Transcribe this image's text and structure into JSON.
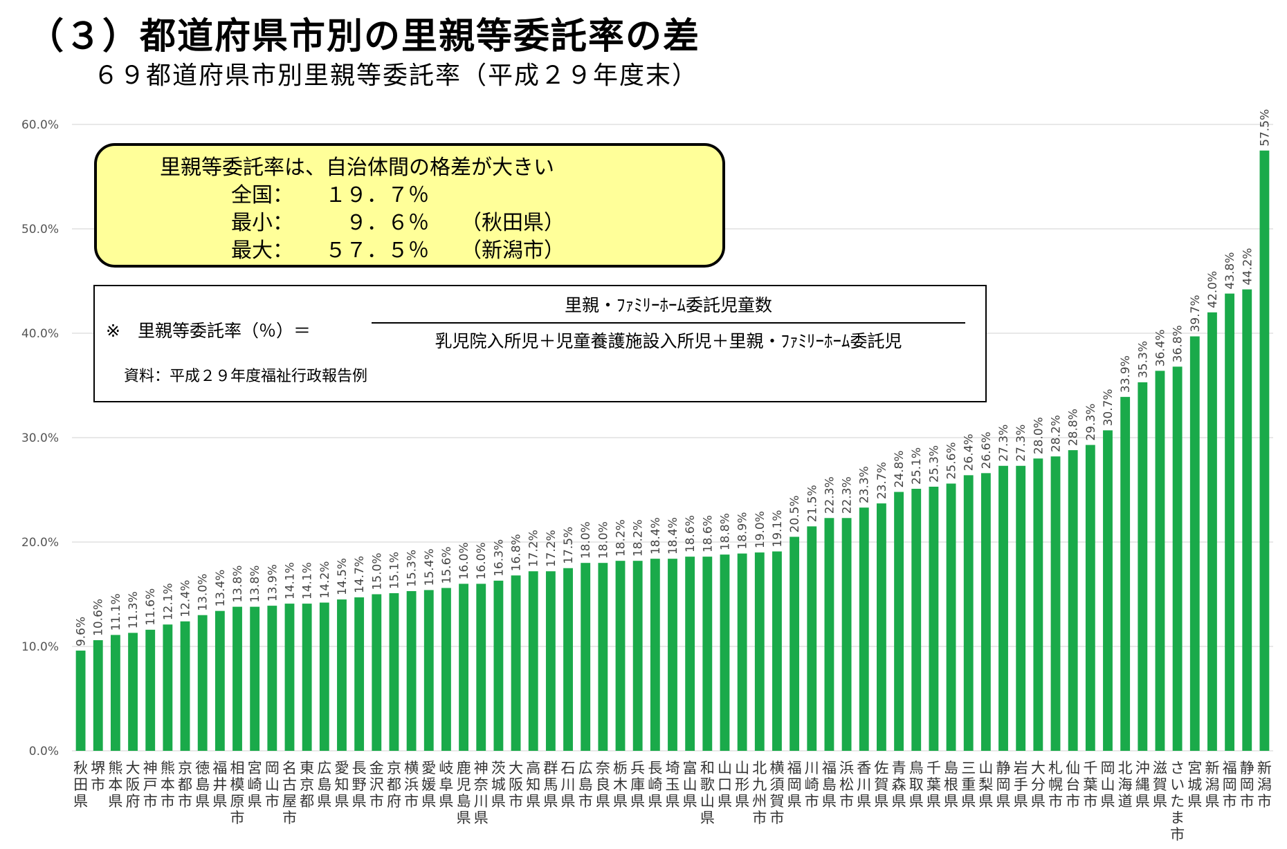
{
  "title": "（３）都道府県市別の里親等委託率の差",
  "subtitle": "６９都道府県市別里親等委託率（平成２９年度末）",
  "callout": {
    "heading": "里親等委託率は、自治体間の格差が大きい",
    "national_label": "全国：",
    "national_value": "１９．７％",
    "min_label": "最小：",
    "min_value": "９．６％",
    "min_place": "（秋田県）",
    "max_label": "最大：",
    "max_value": "５７．５％",
    "max_place": "（新潟市）"
  },
  "formula": {
    "prefix": "※　里親等委託率（％）＝",
    "numerator": "里親・ﾌｧﾐﾘｰﾎｰﾑ委託児童数",
    "denominator": "乳児院入所児＋児童養護施設入所児＋里親・ﾌｧﾐﾘｰﾎｰﾑ委託児",
    "source": "資料：平成２９年度福祉行政報告例"
  },
  "colors": {
    "bar": "#1aaa4a",
    "grid": "#d0d0d0",
    "callout_bg": "#ffff99"
  },
  "chart_data": {
    "type": "bar",
    "ylim": [
      0,
      60
    ],
    "yticks": [
      "0.0%",
      "10.0%",
      "20.0%",
      "30.0%",
      "40.0%",
      "50.0%",
      "60.0%"
    ],
    "grid": true,
    "categories": [
      "秋田県",
      "堺市",
      "熊本県",
      "大阪府",
      "神戸市",
      "熊本市",
      "京都市",
      "徳島県",
      "福井県",
      "相模原市",
      "宮崎県",
      "岡山市",
      "名古屋市",
      "東京都",
      "広島県",
      "愛知県",
      "長野県",
      "金沢市",
      "京都府",
      "横浜市",
      "愛媛県",
      "岐阜県",
      "鹿児島県",
      "神奈川県",
      "茨城県",
      "大阪市",
      "高知県",
      "群馬県",
      "石川県",
      "広島市",
      "奈良県",
      "栃木県",
      "兵庫県",
      "長崎県",
      "埼玉県",
      "富山県",
      "和歌山県",
      "山口県",
      "山形県",
      "北九州市",
      "横須賀市",
      "福岡県",
      "川崎市",
      "福島県",
      "浜松市",
      "香川県",
      "佐賀県",
      "青森県",
      "鳥取県",
      "千葉県",
      "島根県",
      "三重県",
      "山梨県",
      "静岡県",
      "岩手県",
      "大分県",
      "札幌市",
      "仙台市",
      "千葉市",
      "岡山県",
      "北海道",
      "沖縄県",
      "滋賀県",
      "さいたま市",
      "宮城県",
      "新潟県",
      "福岡市",
      "静岡市",
      "新潟市"
    ],
    "values": [
      9.6,
      10.6,
      11.1,
      11.3,
      11.6,
      12.1,
      12.4,
      13.0,
      13.4,
      13.8,
      13.8,
      13.9,
      14.1,
      14.1,
      14.2,
      14.5,
      14.7,
      15.0,
      15.1,
      15.3,
      15.4,
      15.6,
      16.0,
      16.0,
      16.3,
      16.8,
      17.2,
      17.2,
      17.5,
      18.0,
      18.0,
      18.2,
      18.2,
      18.4,
      18.4,
      18.6,
      18.6,
      18.8,
      18.9,
      19.0,
      19.1,
      20.5,
      21.5,
      22.3,
      22.3,
      23.3,
      23.7,
      24.8,
      25.1,
      25.3,
      25.6,
      26.4,
      26.6,
      27.3,
      27.3,
      28.0,
      28.2,
      28.8,
      29.3,
      30.7,
      33.9,
      35.3,
      36.4,
      36.8,
      39.7,
      42.0,
      43.8,
      44.2,
      57.5
    ],
    "value_labels": [
      "9.6%",
      "10.6%",
      "11.1%",
      "11.3%",
      "11.6%",
      "12.1%",
      "12.4%",
      "13.0%",
      "13.4%",
      "13.8%",
      "13.8%",
      "13.9%",
      "14.1%",
      "14.1%",
      "14.2%",
      "14.5%",
      "14.7%",
      "15.0%",
      "15.1%",
      "15.3%",
      "15.4%",
      "15.6%",
      "16.0%",
      "16.0%",
      "16.3%",
      "16.8%",
      "17.2%",
      "17.2%",
      "17.5%",
      "18.0%",
      "18.0%",
      "18.2%",
      "18.2%",
      "18.4%",
      "18.4%",
      "18.6%",
      "18.6%",
      "18.8%",
      "18.9%",
      "19.0%",
      "19.1%",
      "20.5%",
      "21.5%",
      "22.3%",
      "22.3%",
      "23.3%",
      "23.7%",
      "24.8%",
      "25.1%",
      "25.3%",
      "25.6%",
      "26.4%",
      "26.6%",
      "27.3%",
      "27.3%",
      "28.0%",
      "28.2%",
      "28.8%",
      "29.3%",
      "30.7%",
      "33.9%",
      "35.3%",
      "36.4%",
      "36.8%",
      "39.7%",
      "42.0%",
      "43.8%",
      "44.2%",
      "57.5%"
    ]
  }
}
